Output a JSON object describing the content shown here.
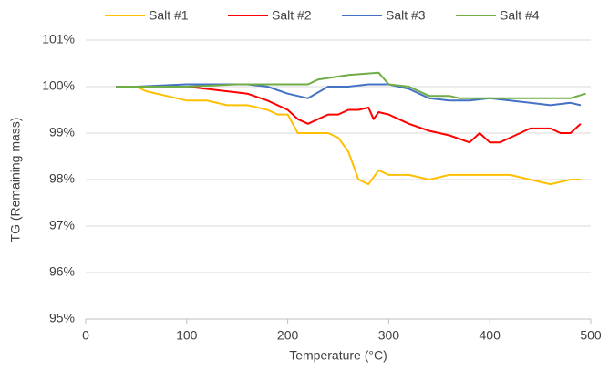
{
  "chart_data": {
    "type": "line",
    "xlabel": "Temperature (°C)",
    "ylabel": "TG (Remaining mass)",
    "xlim": [
      0,
      500
    ],
    "xticks": [
      0,
      100,
      200,
      300,
      400,
      500
    ],
    "ylim": [
      95,
      101
    ],
    "yticks": [
      {
        "value": 95,
        "label": "95%"
      },
      {
        "value": 96,
        "label": "96%"
      },
      {
        "value": 97,
        "label": "97%"
      },
      {
        "value": 98,
        "label": "98%"
      },
      {
        "value": 99,
        "label": "99%"
      },
      {
        "value": 100,
        "label": "100%"
      },
      {
        "value": 101,
        "label": "101%"
      }
    ],
    "grid": true,
    "legend": "top",
    "series": [
      {
        "name": "Salt #1",
        "color": "#FFC000",
        "x": [
          30,
          50,
          60,
          80,
          100,
          120,
          140,
          160,
          180,
          190,
          200,
          210,
          220,
          240,
          250,
          260,
          270,
          280,
          290,
          300,
          320,
          340,
          360,
          380,
          400,
          420,
          440,
          460,
          480,
          490
        ],
        "values": [
          100.0,
          100.0,
          99.9,
          99.8,
          99.7,
          99.7,
          99.6,
          99.6,
          99.5,
          99.4,
          99.4,
          99.0,
          99.0,
          99.0,
          98.9,
          98.6,
          98.0,
          97.9,
          98.2,
          98.1,
          98.1,
          98.0,
          98.1,
          98.1,
          98.1,
          98.1,
          98.0,
          97.9,
          98.0,
          98.0
        ]
      },
      {
        "name": "Salt #2",
        "color": "#FF0000",
        "x": [
          30,
          50,
          100,
          120,
          140,
          160,
          180,
          200,
          210,
          220,
          230,
          240,
          250,
          260,
          270,
          280,
          285,
          290,
          300,
          320,
          340,
          360,
          380,
          390,
          400,
          410,
          420,
          440,
          460,
          470,
          480,
          490
        ],
        "values": [
          100.0,
          100.0,
          100.0,
          99.95,
          99.9,
          99.85,
          99.7,
          99.5,
          99.3,
          99.2,
          99.3,
          99.4,
          99.4,
          99.5,
          99.5,
          99.55,
          99.3,
          99.45,
          99.4,
          99.2,
          99.05,
          98.95,
          98.8,
          99.0,
          98.8,
          98.8,
          98.9,
          99.1,
          99.1,
          99.0,
          99.0,
          99.2
        ]
      },
      {
        "name": "Salt #3",
        "color": "#4472C4",
        "x": [
          30,
          50,
          100,
          140,
          160,
          180,
          200,
          220,
          240,
          260,
          280,
          300,
          320,
          340,
          360,
          380,
          400,
          420,
          440,
          460,
          480,
          490
        ],
        "values": [
          100.0,
          100.0,
          100.05,
          100.05,
          100.05,
          100.0,
          99.85,
          99.75,
          100.0,
          100.0,
          100.05,
          100.05,
          99.95,
          99.75,
          99.7,
          99.7,
          99.75,
          99.7,
          99.65,
          99.6,
          99.65,
          99.6
        ]
      },
      {
        "name": "Salt #4",
        "color": "#70AD47",
        "x": [
          30,
          100,
          150,
          200,
          220,
          230,
          260,
          290,
          300,
          320,
          340,
          360,
          370,
          400,
          440,
          480,
          495
        ],
        "values": [
          100.0,
          100.0,
          100.05,
          100.05,
          100.05,
          100.15,
          100.25,
          100.3,
          100.05,
          100.0,
          99.8,
          99.8,
          99.75,
          99.75,
          99.75,
          99.75,
          99.85
        ]
      }
    ]
  }
}
